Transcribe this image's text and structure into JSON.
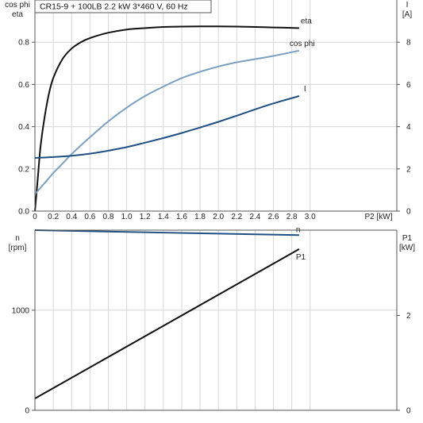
{
  "header": {
    "title": "CR15-9 + 100LB   2.2 kW   3*460 V, 60 Hz"
  },
  "chart_data": [
    {
      "type": "line",
      "grid": true,
      "x_axis": {
        "label": "P2 [kW]",
        "range": [
          0,
          3.4
        ],
        "ticks": [
          0,
          0.2,
          0.4,
          0.6,
          0.8,
          1.0,
          1.2,
          1.4,
          1.6,
          1.8,
          2.0,
          2.2,
          2.4,
          2.6,
          2.8,
          3.0
        ],
        "tick_labels": [
          "0",
          "0.2",
          "0.4",
          "0.6",
          "0.8",
          "1.0",
          "1.2",
          "1.4",
          "1.6",
          "1.8",
          "2.0",
          "2.2",
          "2.4",
          "2.6",
          "2.8",
          "3.0"
        ]
      },
      "y_left": {
        "label_line1": "cos phi",
        "label_line2": "eta",
        "range": [
          0,
          1.0
        ],
        "ticks": [
          0,
          0.2,
          0.4,
          0.6,
          0.8
        ],
        "tick_labels": [
          "0.0",
          "0.2",
          "0.4",
          "0.6",
          "0.8"
        ]
      },
      "y_right": {
        "label_line1": "I",
        "label_line2": "[A]",
        "range": [
          0,
          10
        ],
        "ticks": [
          0,
          2,
          4,
          6,
          8
        ],
        "tick_labels": [
          "0",
          "2",
          "4",
          "6",
          "8"
        ]
      },
      "series": [
        {
          "name": "eta",
          "axis": "left",
          "color": "#111111",
          "x": [
            0,
            0.03,
            0.06,
            0.1,
            0.15,
            0.2,
            0.3,
            0.4,
            0.5,
            0.6,
            0.8,
            1.0,
            1.2,
            1.4,
            1.6,
            1.8,
            2.0,
            2.2,
            2.4,
            2.6,
            2.8,
            2.88
          ],
          "y": [
            0.0,
            0.15,
            0.3,
            0.43,
            0.55,
            0.63,
            0.72,
            0.77,
            0.8,
            0.82,
            0.845,
            0.86,
            0.867,
            0.872,
            0.874,
            0.875,
            0.875,
            0.874,
            0.872,
            0.87,
            0.868,
            0.867
          ]
        },
        {
          "name": "cos phi",
          "axis": "left",
          "color": "#7a9fc0",
          "x": [
            0,
            0.1,
            0.2,
            0.3,
            0.4,
            0.6,
            0.8,
            1.0,
            1.2,
            1.4,
            1.6,
            1.8,
            2.0,
            2.2,
            2.4,
            2.6,
            2.88
          ],
          "y": [
            0.08,
            0.13,
            0.18,
            0.225,
            0.27,
            0.35,
            0.425,
            0.49,
            0.545,
            0.59,
            0.63,
            0.66,
            0.685,
            0.705,
            0.72,
            0.735,
            0.76
          ]
        },
        {
          "name": "I",
          "axis": "right",
          "color": "#1f4f82",
          "x": [
            0,
            0.2,
            0.4,
            0.6,
            0.8,
            1.0,
            1.2,
            1.4,
            1.6,
            1.8,
            2.0,
            2.2,
            2.4,
            2.6,
            2.88
          ],
          "y": [
            2.52,
            2.56,
            2.62,
            2.72,
            2.86,
            3.03,
            3.24,
            3.46,
            3.7,
            3.96,
            4.23,
            4.52,
            4.82,
            5.1,
            5.45
          ]
        }
      ]
    },
    {
      "type": "line",
      "grid": true,
      "x_axis": {
        "range": [
          0,
          3.4
        ],
        "ticks": [
          0,
          0.2,
          0.4,
          0.6,
          0.8,
          1.0,
          1.2,
          1.4,
          1.6,
          1.8,
          2.0,
          2.2,
          2.4,
          2.6,
          2.8,
          3.0
        ]
      },
      "y_left": {
        "label_line1": "n",
        "label_line2": "[rpm]",
        "range": [
          0,
          1800
        ],
        "ticks": [
          0,
          1000
        ],
        "tick_labels": [
          "0",
          "1000"
        ]
      },
      "y_right": {
        "label_line1": "P1",
        "label_line2": "[kW]",
        "range": [
          0,
          3.8
        ],
        "ticks": [
          0,
          2
        ],
        "tick_labels": [
          "0",
          "2"
        ]
      },
      "series": [
        {
          "name": "n",
          "axis": "left",
          "color": "#1f4f82",
          "x": [
            0,
            2.88
          ],
          "y": [
            1800,
            1750
          ]
        },
        {
          "name": "P1",
          "axis": "right",
          "color": "#111111",
          "x": [
            0,
            2.88
          ],
          "y": [
            0.25,
            3.4
          ]
        }
      ]
    }
  ]
}
